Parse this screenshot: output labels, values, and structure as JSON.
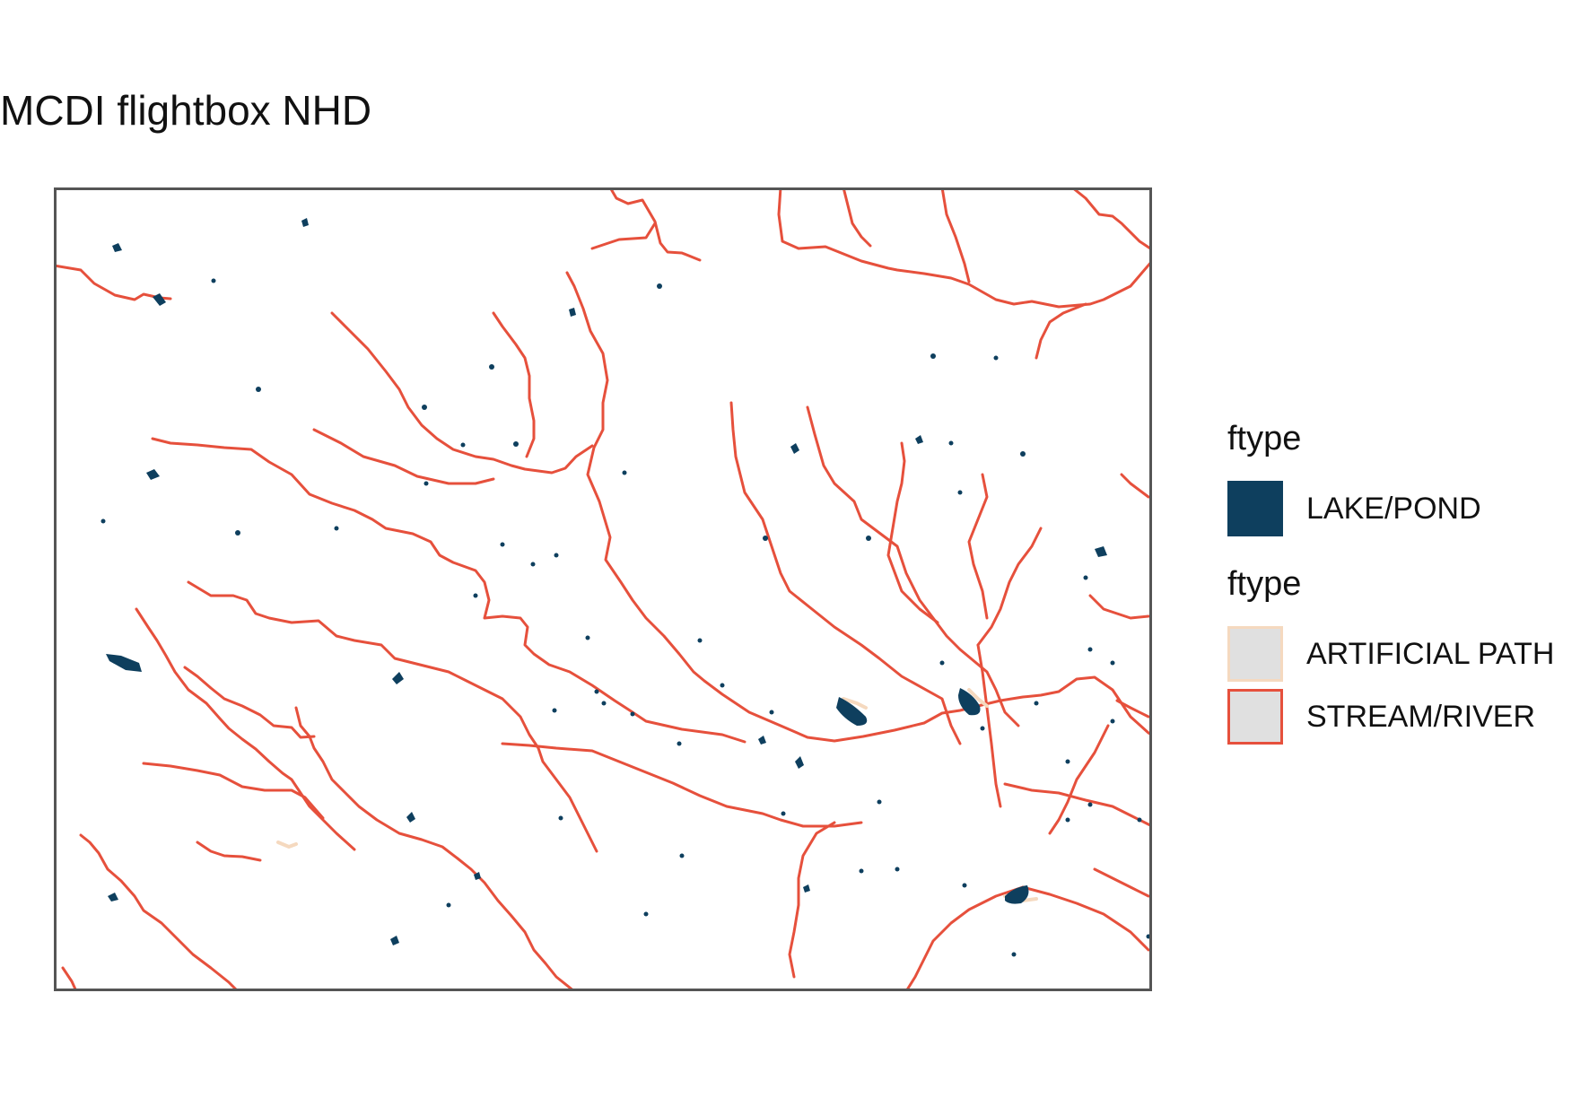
{
  "title": "MCDI flightbox NHD",
  "map": {
    "frame_color": "#555555",
    "stream_color": "#e6503c",
    "lake_color": "#0e3f5e",
    "artificial_color": "#f5d9bf"
  },
  "legend": {
    "fill_title": "ftype",
    "fill_items": [
      {
        "label": "LAKE/POND",
        "color": "#0e3f5e"
      }
    ],
    "line_title": "ftype",
    "line_items": [
      {
        "label": "ARTIFICIAL PATH",
        "color": "#f5d9bf"
      },
      {
        "label": "STREAM/RIVER",
        "color": "#e6503c"
      }
    ]
  }
}
